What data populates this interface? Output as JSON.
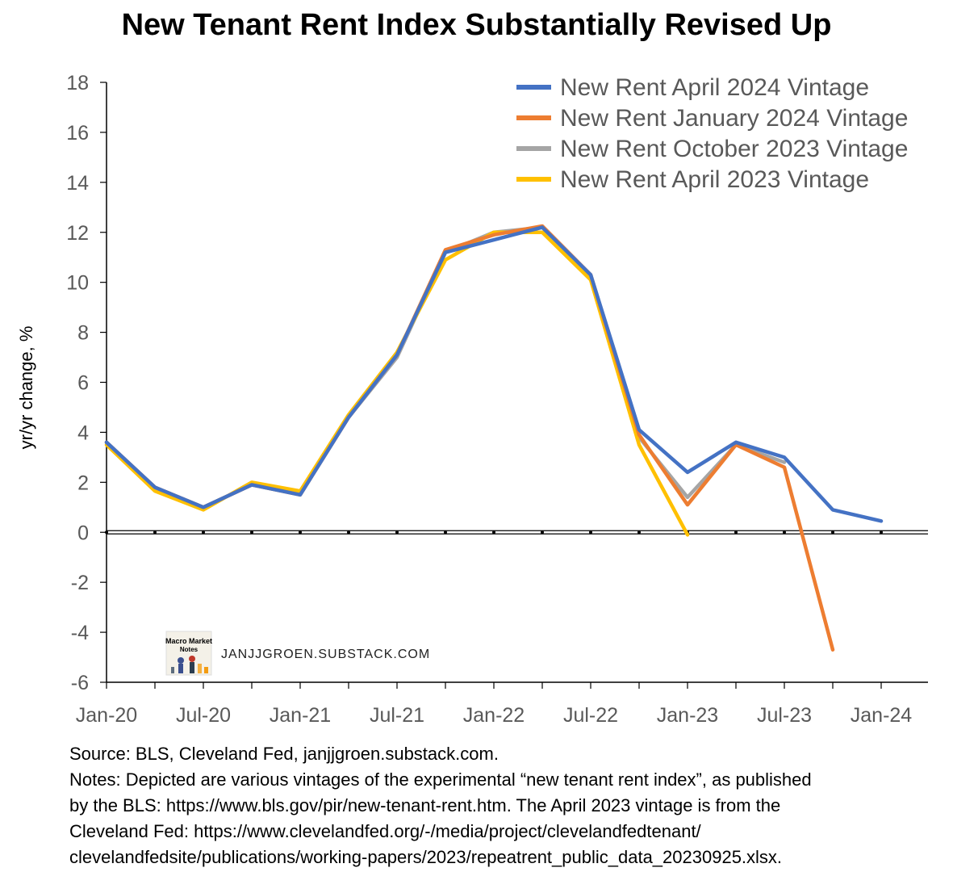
{
  "chart_data": {
    "type": "line",
    "title": "New Tenant Rent Index Substantially Revised Up",
    "ylabel": "yr/yr change, %",
    "xlabel": "",
    "ylim": [
      -6,
      18
    ],
    "y_ticks": [
      "18",
      "16",
      "14",
      "12",
      "10",
      "8",
      "6",
      "4",
      "2",
      "0",
      "-2",
      "-4",
      "-6"
    ],
    "x_tick_labels": [
      "Jan-20",
      "Jul-20",
      "Jan-21",
      "Jul-21",
      "Jan-22",
      "Jul-22",
      "Jan-23",
      "Jul-23",
      "Jan-24"
    ],
    "x": [
      "2020Q1",
      "2020Q2",
      "2020Q3",
      "2020Q4",
      "2021Q1",
      "2021Q2",
      "2021Q3",
      "2021Q4",
      "2022Q1",
      "2022Q2",
      "2022Q3",
      "2022Q4",
      "2023Q1",
      "2023Q2",
      "2023Q3",
      "2023Q4",
      "2024Q1"
    ],
    "legend_position": "top-right",
    "grid": false,
    "series": [
      {
        "name": "New Rent April 2024 Vintage",
        "color": "#4472C4",
        "values": [
          3.6,
          1.8,
          1.0,
          1.9,
          1.5,
          4.6,
          7.1,
          11.2,
          11.7,
          12.2,
          10.3,
          4.1,
          2.4,
          3.6,
          3.0,
          0.9,
          0.45
        ]
      },
      {
        "name": "New Rent January 2024 Vintage",
        "color": "#ED7D31",
        "values": [
          3.6,
          1.8,
          1.0,
          1.9,
          1.5,
          4.6,
          7.1,
          11.3,
          11.9,
          12.25,
          10.3,
          3.9,
          1.1,
          3.5,
          2.6,
          -4.7,
          null
        ]
      },
      {
        "name": "New Rent October 2023 Vintage",
        "color": "#A5A5A5",
        "values": [
          3.6,
          1.8,
          1.0,
          1.9,
          1.5,
          4.6,
          7.0,
          11.2,
          12.0,
          12.2,
          10.3,
          3.8,
          1.4,
          3.5,
          2.8,
          null,
          null
        ]
      },
      {
        "name": "New Rent April 2023 Vintage",
        "color": "#FFC000",
        "values": [
          3.5,
          1.65,
          0.9,
          2.0,
          1.65,
          4.7,
          7.2,
          10.9,
          12.0,
          12.0,
          10.1,
          3.5,
          -0.1,
          null,
          null,
          null,
          null
        ]
      }
    ]
  },
  "watermark": {
    "logo_text": "Macro Market Notes",
    "site": "JANJJGROEN.SUBSTACK.COM"
  },
  "notes": {
    "line1": "Source: BLS, Cleveland Fed, janjjgroen.substack.com.",
    "line2": "Notes: Depicted are various vintages of the experimental “new tenant rent index”, as published",
    "line3": "by the BLS: https://www.bls.gov/pir/new-tenant-rent.htm. The April 2023 vintage is from the",
    "line4": "Cleveland Fed: https://www.clevelandfed.org/-/media/project/clevelandfedtenant/",
    "line5": "clevelandfedsite/publications/working-papers/2023/repeatrent_public_data_20230925.xlsx."
  }
}
